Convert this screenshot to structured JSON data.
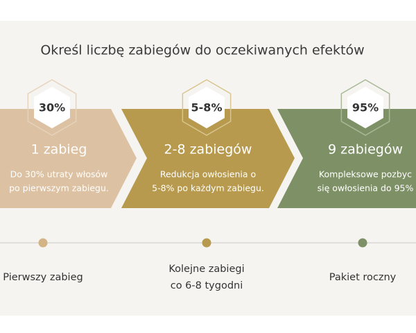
{
  "title": "Określ liczbę zabiegów do oczekiwanych efektów",
  "steps": [
    {
      "badge": "30%",
      "heading": "1 zabieg",
      "description": [
        "Do 30% utraty włosów",
        "po pierwszym zabiegu."
      ],
      "timeline": [
        "Pierwszy zabieg"
      ]
    },
    {
      "badge": "5-8%",
      "heading": "2-8 zabiegów",
      "description": [
        "Redukcja owłosienia o",
        "5-8% po każdym zabiegu."
      ],
      "timeline": [
        "Kolejne zabiegi",
        "co 6-8 tygodni"
      ]
    },
    {
      "badge": "95%",
      "heading": "9 zabiegów",
      "description": [
        "Kompleksowe pozbyc",
        "się owłosienia do 95%"
      ],
      "timeline": [
        "Pakiet roczny"
      ]
    }
  ]
}
